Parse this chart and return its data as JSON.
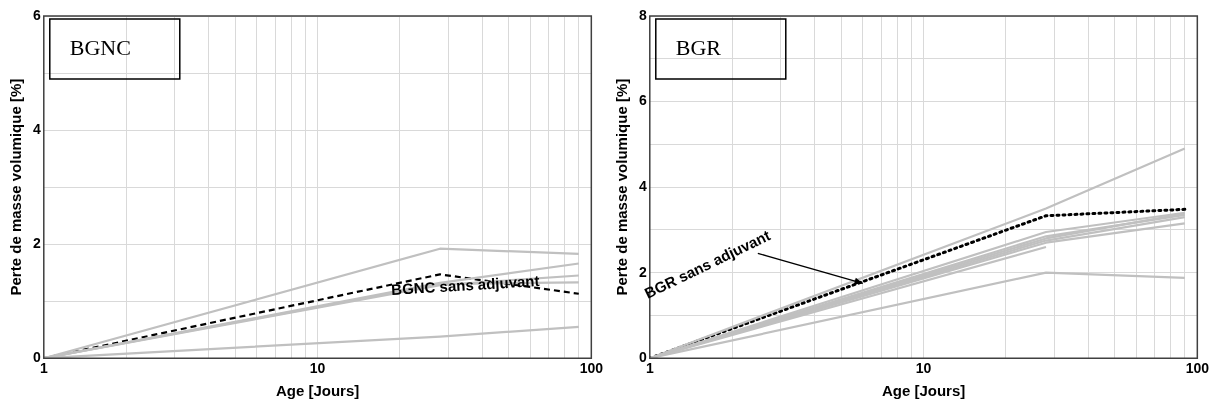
{
  "chart_data": [
    {
      "type": "line",
      "title": "BGNC",
      "xlabel": "Age [Jours]",
      "ylabel": "Perte de masse volumique [%]",
      "x": [
        1,
        28,
        90
      ],
      "log": "x",
      "grid": true,
      "marker": "none",
      "xlim": [
        1,
        100
      ],
      "xticks": [
        1,
        {
          "value": 2,
          "label": null
        },
        {
          "value": 3,
          "label": null
        },
        {
          "value": 4,
          "label": null
        },
        {
          "value": 5,
          "label": null
        },
        {
          "value": 6,
          "label": null
        },
        {
          "value": 7,
          "label": null
        },
        {
          "value": 8,
          "label": null
        },
        {
          "value": 9,
          "label": null
        },
        10,
        {
          "value": 20,
          "label": null
        },
        {
          "value": 30,
          "label": null
        },
        {
          "value": 40,
          "label": null
        },
        {
          "value": 50,
          "label": null
        },
        {
          "value": 60,
          "label": null
        },
        {
          "value": 70,
          "label": null
        },
        {
          "value": 80,
          "label": null
        },
        {
          "value": 90,
          "label": null
        },
        100
      ],
      "ylim": [
        0,
        6
      ],
      "yticks": [
        0,
        {
          "value": 1,
          "label": null
        },
        2,
        {
          "value": 3,
          "label": null
        },
        4,
        {
          "value": 5,
          "label": null
        },
        6
      ],
      "series": [
        {
          "color": "#c0c0c0",
          "values": [
            0,
            1.92,
            1.83
          ]
        },
        {
          "color": "#c0c0c0",
          "values": [
            0,
            1.32,
            1.66
          ]
        },
        {
          "color": "#c0c0c0",
          "values": [
            0,
            1.28,
            1.45
          ]
        },
        {
          "color": "#c0c0c0",
          "values": [
            0,
            1.3,
            1.33
          ]
        },
        {
          "color": "#c0c0c0",
          "values": [
            0,
            0.38,
            0.55
          ]
        },
        {
          "color": "#000000",
          "line_style": "dashed",
          "values": [
            0,
            1.47,
            1.13
          ]
        }
      ],
      "annotations": [
        "BGNC sans adjuvant"
      ]
    },
    {
      "type": "line",
      "title": "BGR",
      "xlabel": "Age [Jours]",
      "ylabel": "Perte de masse volumique [%]",
      "x": [
        1,
        28,
        90
      ],
      "log": "x",
      "grid": true,
      "marker": "none",
      "xlim": [
        1,
        100
      ],
      "xticks": [
        1,
        {
          "value": 2,
          "label": null
        },
        {
          "value": 3,
          "label": null
        },
        {
          "value": 4,
          "label": null
        },
        {
          "value": 5,
          "label": null
        },
        {
          "value": 6,
          "label": null
        },
        {
          "value": 7,
          "label": null
        },
        {
          "value": 8,
          "label": null
        },
        {
          "value": 9,
          "label": null
        },
        10,
        {
          "value": 20,
          "label": null
        },
        {
          "value": 30,
          "label": null
        },
        {
          "value": 40,
          "label": null
        },
        {
          "value": 50,
          "label": null
        },
        {
          "value": 60,
          "label": null
        },
        {
          "value": 70,
          "label": null
        },
        {
          "value": 80,
          "label": null
        },
        {
          "value": 90,
          "label": null
        },
        100
      ],
      "ylim": [
        0,
        8
      ],
      "yticks": [
        0,
        {
          "value": 1,
          "label": null
        },
        2,
        {
          "value": 3,
          "label": null
        },
        4,
        {
          "value": 5,
          "label": null
        },
        6,
        {
          "value": 7,
          "label": null
        },
        8
      ],
      "series": [
        {
          "color": "#c0c0c0",
          "values": [
            0,
            3.5,
            4.9
          ]
        },
        {
          "color": "#c0c0c0",
          "values": [
            0,
            2.0,
            1.88
          ]
        },
        {
          "color": "#c0c0c0",
          "values": [
            0,
            2.6,
            null
          ]
        },
        {
          "color": "#c0c0c0",
          "values": [
            0,
            2.95,
            3.4
          ]
        },
        {
          "color": "#c0c0c0",
          "values": [
            0,
            2.85,
            3.35
          ]
        },
        {
          "color": "#c0c0c0",
          "values": [
            0,
            2.75,
            3.3
          ]
        },
        {
          "color": "#c0c0c0",
          "values": [
            0,
            2.7,
            3.15
          ]
        },
        {
          "color": "#c0c0c0",
          "values": [
            0,
            2.8,
            3.38
          ]
        },
        {
          "color": "#000000",
          "line_style": "dotted",
          "values": [
            0,
            3.33,
            3.48
          ]
        }
      ],
      "annotations": [
        {
          "text": "BGR sans adjuvant",
          "x": 6,
          "y": 1.75
        }
      ]
    }
  ]
}
